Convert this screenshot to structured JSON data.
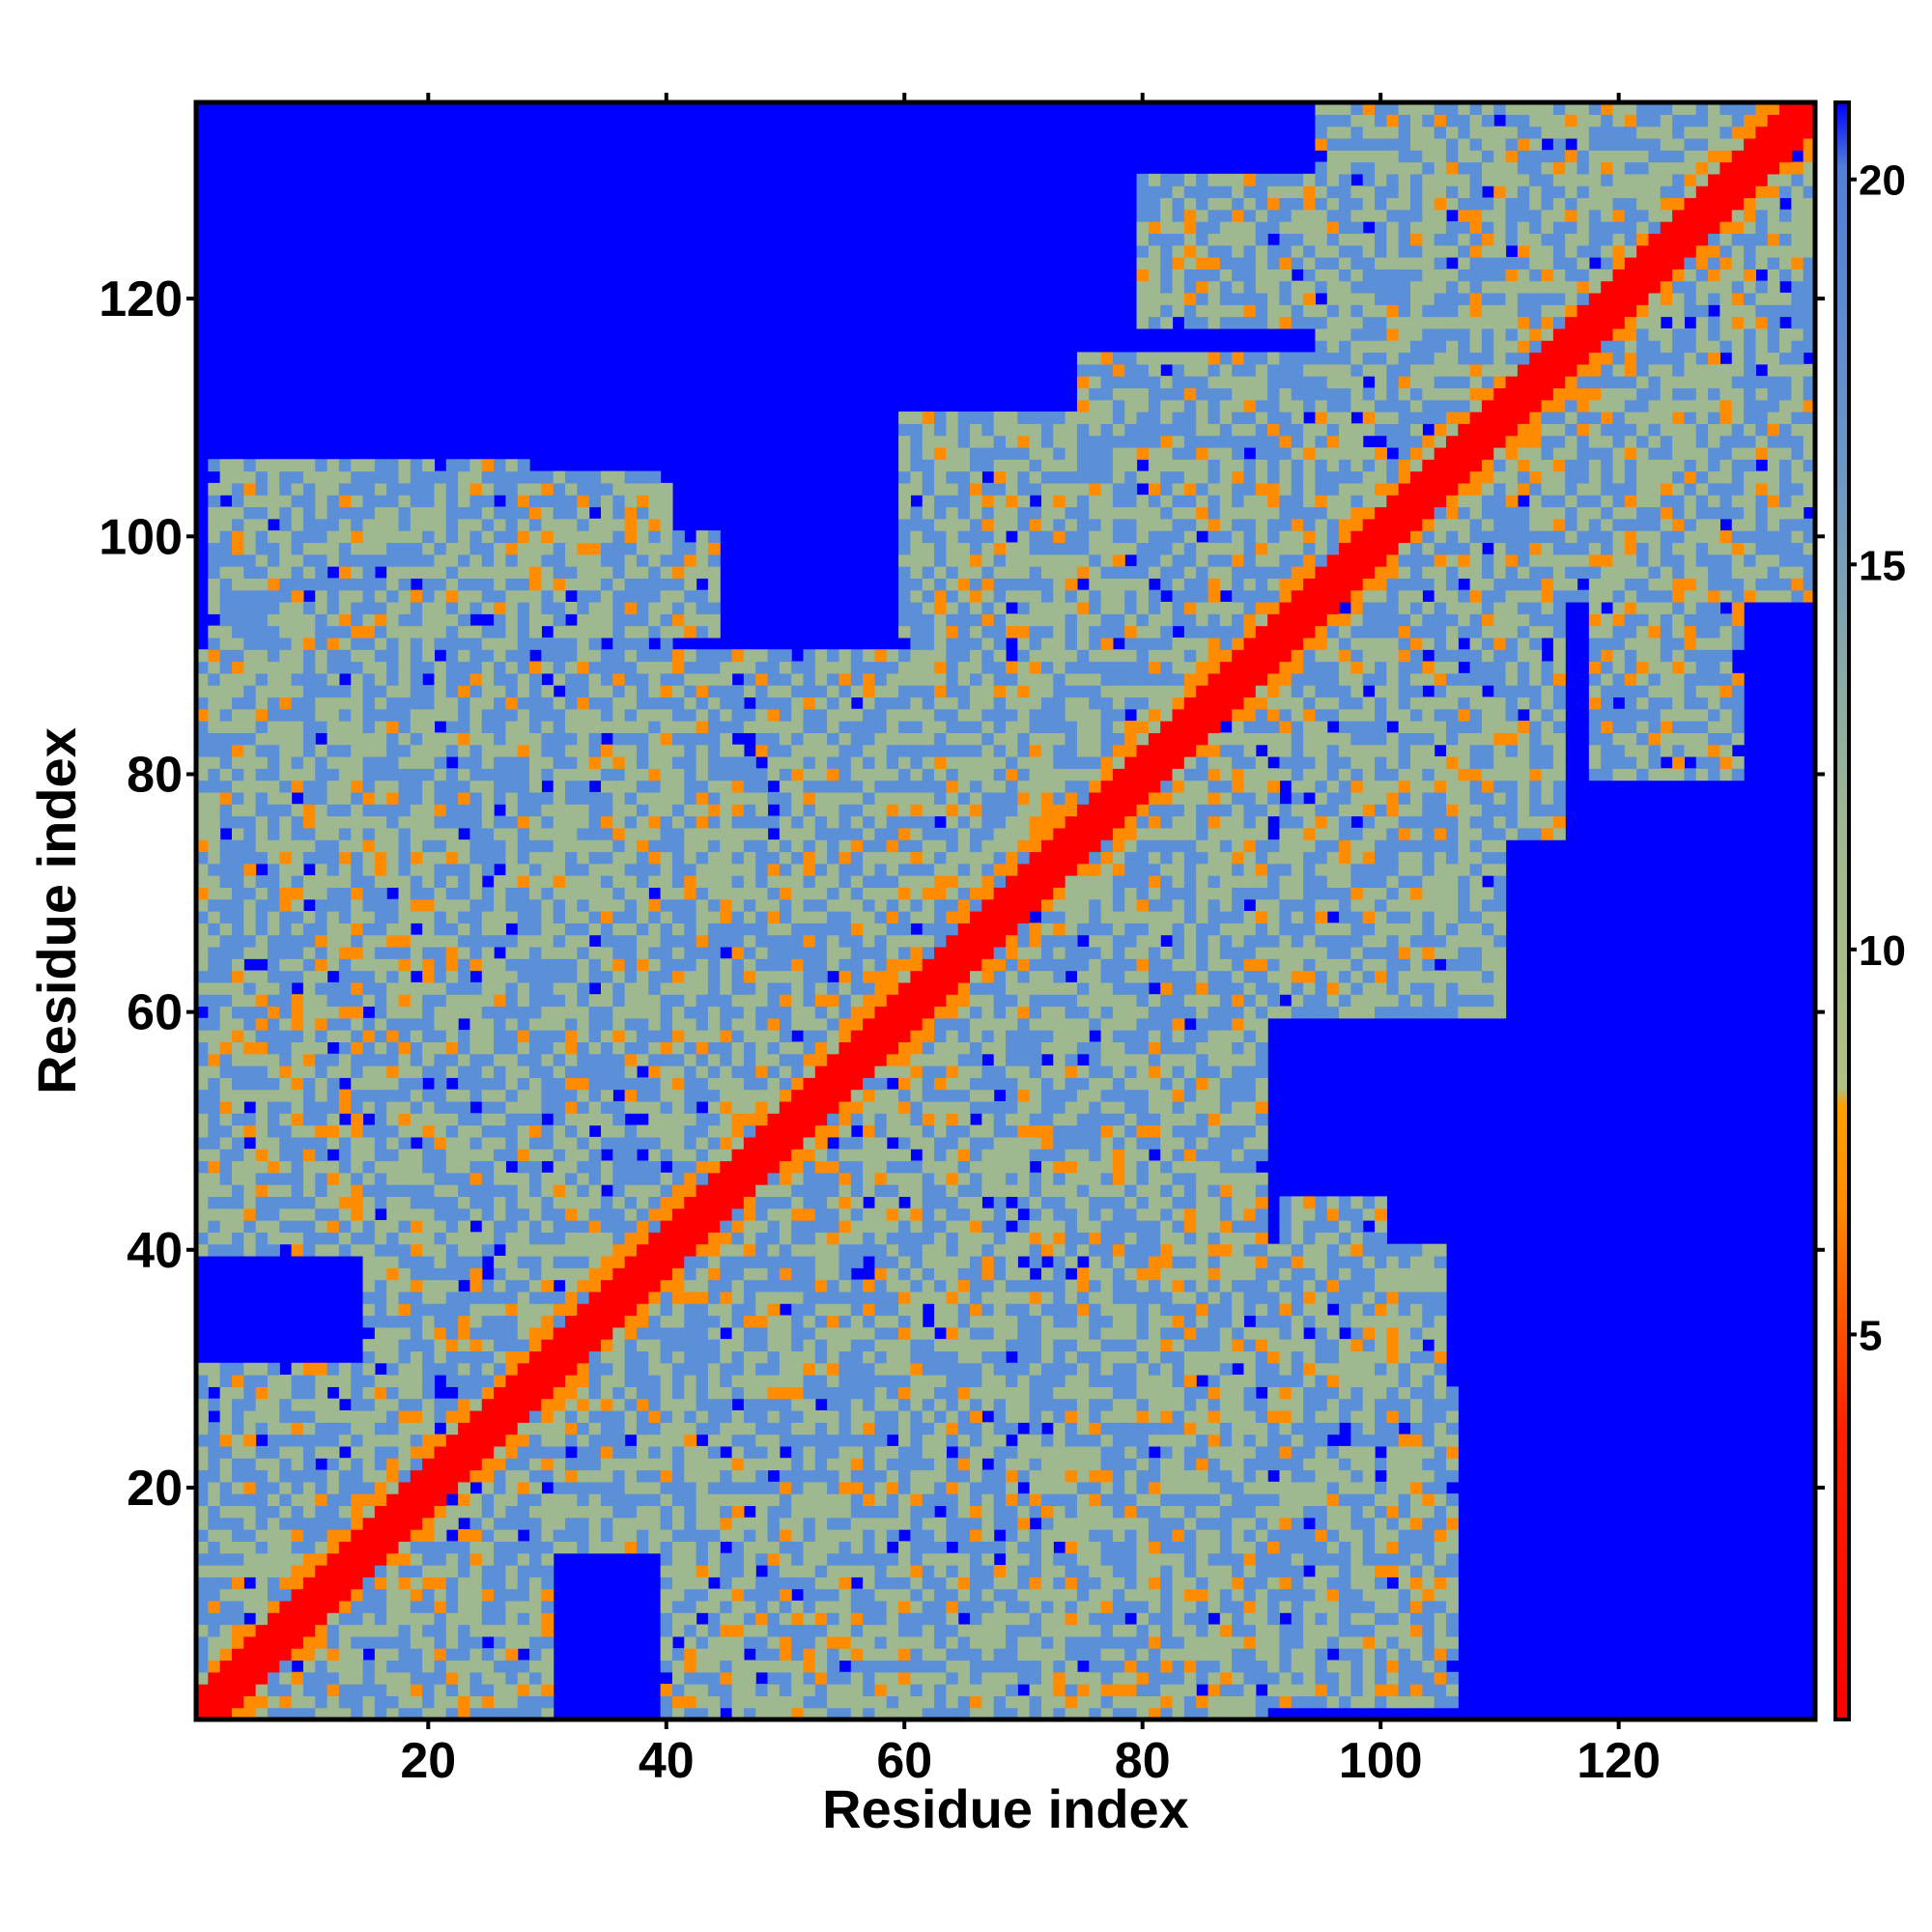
{
  "chart_data": {
    "type": "heatmap",
    "title": "",
    "xlabel": "Residue index",
    "ylabel": "Residue index",
    "n_residues": 136,
    "xlim": [
      0.5,
      136.5
    ],
    "ylim": [
      0.5,
      136.5
    ],
    "x_ticks": [
      20,
      40,
      60,
      80,
      100,
      120
    ],
    "y_ticks": [
      20,
      40,
      60,
      80,
      100,
      120
    ],
    "x_tick_labels": [
      "20",
      "40",
      "60",
      "80",
      "100",
      "120"
    ],
    "y_tick_labels": [
      "20",
      "40",
      "60",
      "80",
      "100",
      "120"
    ],
    "colorbar": {
      "range": [
        0,
        21
      ],
      "ticks": [
        5,
        10,
        15,
        20
      ],
      "tick_labels": [
        "5",
        "10",
        "15",
        "20"
      ],
      "colors": {
        "close": "#ff0000",
        "near": "#ff8c00",
        "mid": "#9fb88f",
        "far": "#5b8fd8",
        "background": "#0000ff"
      }
    },
    "diagonal_band_width": 2,
    "contact_regions": [
      {
        "x": [
          1,
          30
        ],
        "y": [
          1,
          30
        ]
      },
      {
        "x": [
          20,
          60
        ],
        "y": [
          15,
          60
        ]
      },
      {
        "x": [
          35,
          80
        ],
        "y": [
          15,
          50
        ]
      },
      {
        "x": [
          40,
          90
        ],
        "y": [
          1,
          40
        ]
      },
      {
        "x": [
          5,
          50
        ],
        "y": [
          40,
          90
        ]
      },
      {
        "x": [
          20,
          70
        ],
        "y": [
          55,
          90
        ]
      },
      {
        "x": [
          5,
          40
        ],
        "y": [
          90,
          105
        ]
      },
      {
        "x": [
          50,
          90
        ],
        "y": [
          50,
          85
        ]
      },
      {
        "x": [
          70,
          110
        ],
        "y": [
          60,
          110
        ]
      },
      {
        "x": [
          85,
          115
        ],
        "y": [
          75,
          105
        ]
      },
      {
        "x": [
          100,
          136
        ],
        "y": [
          100,
          136
        ]
      },
      {
        "x": [
          110,
          136
        ],
        "y": [
          95,
          125
        ]
      },
      {
        "x": [
          80,
          92
        ],
        "y": [
          118,
          130
        ]
      },
      {
        "x": [
          118,
          130
        ],
        "y": [
          82,
          94
        ]
      },
      {
        "x": [
          88,
          106
        ],
        "y": [
          2,
          28
        ]
      },
      {
        "x": [
          92,
          100
        ],
        "y": [
          36,
          44
        ]
      }
    ]
  }
}
